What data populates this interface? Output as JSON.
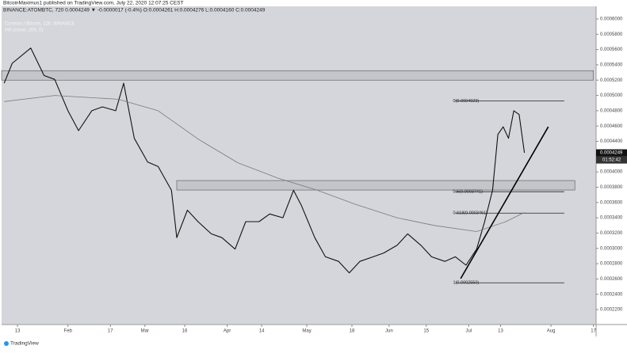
{
  "header": {
    "published": "BitcoinMaximus1 published on TradingView.com, July 22, 2020 12:07:25 CEST",
    "symbol_line": "BINANCE:ATOMBTC, 720  0.0004249 ▼ -0.0000017 (-0.4%) O:0.0004261 H:0.0004276 L:0.0004160 C:0.0004249"
  },
  "footer": {
    "brand": "TradingView"
  },
  "chart_data": {
    "type": "line",
    "subtitle": "Cosmos / Bitcoin, 12h, BINANCE",
    "indicator": "MA (close, 200, 0)",
    "xlim": [
      "2020-01-07",
      "2020-08-18"
    ],
    "ylim": [
      0.0002004,
      0.0006165
    ],
    "xticks": [
      {
        "value": "2020-01-13",
        "label": "13"
      },
      {
        "value": "2020-02-01",
        "label": "Feb"
      },
      {
        "value": "2020-02-17",
        "label": "17"
      },
      {
        "value": "2020-03-01",
        "label": "Mar"
      },
      {
        "value": "2020-03-16",
        "label": "16"
      },
      {
        "value": "2020-04-01",
        "label": "Apr"
      },
      {
        "value": "2020-04-14",
        "label": "14"
      },
      {
        "value": "2020-05-01",
        "label": "May"
      },
      {
        "value": "2020-05-18",
        "label": "18"
      },
      {
        "value": "2020-06-01",
        "label": "Jun"
      },
      {
        "value": "2020-06-15",
        "label": "15"
      },
      {
        "value": "2020-07-01",
        "label": "Jul"
      },
      {
        "value": "2020-07-13",
        "label": "13"
      },
      {
        "value": "2020-08-01",
        "label": "Aug"
      },
      {
        "value": "2020-08-17",
        "label": "17"
      }
    ],
    "yticks": [
      {
        "value": 0.00022,
        "label": "0.0002200"
      },
      {
        "value": 0.00024,
        "label": "0.0002400"
      },
      {
        "value": 0.00026,
        "label": "0.0002600"
      },
      {
        "value": 0.00028,
        "label": "0.0002800"
      },
      {
        "value": 0.0003,
        "label": "0.0003000"
      },
      {
        "value": 0.00032,
        "label": "0.0003200"
      },
      {
        "value": 0.00034,
        "label": "0.0003400"
      },
      {
        "value": 0.00036,
        "label": "0.0003600"
      },
      {
        "value": 0.00038,
        "label": "0.0003800"
      },
      {
        "value": 0.0004,
        "label": "0.0004000"
      },
      {
        "value": 0.00042,
        "label": "0.0004200"
      },
      {
        "value": 0.00044,
        "label": "0.0004400"
      },
      {
        "value": 0.00046,
        "label": "0.0004600"
      },
      {
        "value": 0.00048,
        "label": "0.0004800"
      },
      {
        "value": 0.0005,
        "label": "0.0005000"
      },
      {
        "value": 0.00052,
        "label": "0.0005200"
      },
      {
        "value": 0.00054,
        "label": "0.0005400"
      },
      {
        "value": 0.00056,
        "label": "0.0005600"
      },
      {
        "value": 0.00058,
        "label": "0.0005800"
      },
      {
        "value": 0.0006,
        "label": "0.0006000"
      }
    ],
    "series": [
      {
        "name": "ATOMBTC",
        "color": "#111111",
        "x": [
          "2020-01-08",
          "2020-01-11",
          "2020-01-18",
          "2020-01-23",
          "2020-01-27",
          "2020-02-01",
          "2020-02-05",
          "2020-02-10",
          "2020-02-14",
          "2020-02-19",
          "2020-02-22",
          "2020-02-26",
          "2020-03-02",
          "2020-03-06",
          "2020-03-11",
          "2020-03-13",
          "2020-03-17",
          "2020-03-21",
          "2020-03-26",
          "2020-03-30",
          "2020-04-04",
          "2020-04-08",
          "2020-04-13",
          "2020-04-17",
          "2020-04-22",
          "2020-04-26",
          "2020-04-29",
          "2020-05-04",
          "2020-05-08",
          "2020-05-13",
          "2020-05-17",
          "2020-05-21",
          "2020-05-26",
          "2020-05-30",
          "2020-06-04",
          "2020-06-08",
          "2020-06-13",
          "2020-06-17",
          "2020-06-22",
          "2020-06-26",
          "2020-06-30",
          "2020-07-04",
          "2020-07-07",
          "2020-07-10",
          "2020-07-12",
          "2020-07-14",
          "2020-07-16",
          "2020-07-18",
          "2020-07-20",
          "2020-07-22"
        ],
        "values": [
          0.000516,
          0.000542,
          0.000562,
          0.000526,
          0.000521,
          0.00048,
          0.000454,
          0.00048,
          0.000485,
          0.00048,
          0.000516,
          0.000444,
          0.000413,
          0.000407,
          0.000376,
          0.000314,
          0.00035,
          0.000335,
          0.000319,
          0.000314,
          0.000299,
          0.000335,
          0.000335,
          0.000345,
          0.00034,
          0.000376,
          0.000356,
          0.000314,
          0.000289,
          0.000283,
          0.000268,
          0.000283,
          0.000289,
          0.000294,
          0.000304,
          0.000319,
          0.000304,
          0.000289,
          0.000283,
          0.000289,
          0.000278,
          0.000299,
          0.000335,
          0.000376,
          0.000449,
          0.000459,
          0.000444,
          0.00048,
          0.000475,
          0.0004249
        ]
      },
      {
        "name": "MA 200",
        "color": "#7a7a7a",
        "x": [
          "2020-01-08",
          "2020-01-27",
          "2020-02-20",
          "2020-03-06",
          "2020-03-21",
          "2020-04-05",
          "2020-04-20",
          "2020-05-05",
          "2020-05-19",
          "2020-06-04",
          "2020-06-18",
          "2020-07-04",
          "2020-07-15",
          "2020-07-22"
        ],
        "values": [
          0.000492,
          0.0005,
          0.000495,
          0.00048,
          0.000443,
          0.000412,
          0.000392,
          0.000376,
          0.000358,
          0.00034,
          0.00033,
          0.000322,
          0.000335,
          0.000347
        ]
      }
    ],
    "zones": [
      {
        "xlim": [
          "2020-01-07",
          "2020-08-17"
        ],
        "ylim": [
          0.00052,
          0.0005324
        ]
      },
      {
        "xlim": [
          "2020-03-13",
          "2020-08-10"
        ],
        "ylim": [
          0.0003763,
          0.0003887
        ]
      }
    ],
    "fib_xlim": [
      "2020-06-26",
      "2020-08-06"
    ],
    "fib_levels": [
      {
        "value": 0.0004929,
        "label": "0(0.0004929)"
      },
      {
        "value": 0.0003741,
        "label": "0.5(0.0003741)"
      },
      {
        "value": 0.0003461,
        "label": "0.618(0.0003461)"
      },
      {
        "value": 0.000255,
        "label": "1(0.0002550)"
      }
    ],
    "trendline": {
      "x": [
        "2020-06-28",
        "2020-07-31"
      ],
      "values": [
        0.0002605,
        0.000459
      ]
    },
    "last_price": {
      "value": 0.0004249,
      "label": "0.0004249"
    },
    "countdown": "01:52:42"
  }
}
